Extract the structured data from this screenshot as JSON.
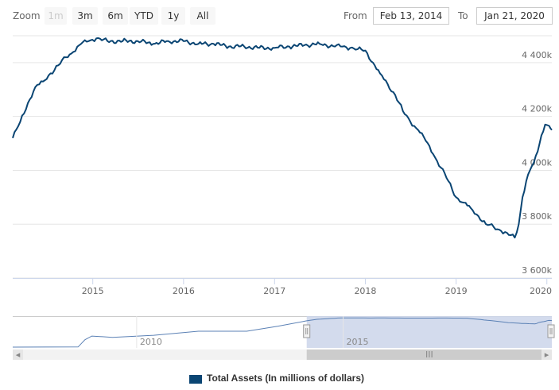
{
  "toolbar": {
    "zoom_label": "Zoom",
    "zoom_buttons": [
      "1m",
      "3m",
      "6m",
      "YTD",
      "1y",
      "All"
    ],
    "from_label": "From",
    "from_value": "Feb 13, 2014",
    "to_label": "To",
    "to_value": "Jan 21, 2020"
  },
  "colors": {
    "series": "#0a4573",
    "navigator_mask": "#cbd5ea",
    "navigator_line": "#5b81b5",
    "grid": "#e6e6e6"
  },
  "chart_data": {
    "type": "line",
    "ylim": [
      3600,
      4500
    ],
    "yticks": [
      3600,
      3800,
      4000,
      4200,
      4400
    ],
    "ytick_labels": [
      "3 600k",
      "3 800k",
      "4 000k",
      "4 200k",
      "4 400k"
    ],
    "xlim": [
      "2014-02-13",
      "2020-01-21"
    ],
    "xtick_labels": [
      "2015",
      "2016",
      "2017",
      "2018",
      "2019",
      "2020"
    ],
    "series": [
      {
        "name": "Total Assets (In millions of dollars)",
        "x": [
          "2014-02-13",
          "2014-03-15",
          "2014-04-15",
          "2014-05-15",
          "2014-06-15",
          "2014-07-15",
          "2014-08-15",
          "2014-09-15",
          "2014-10-15",
          "2014-11-15",
          "2014-12-15",
          "2015-01-15",
          "2015-03-01",
          "2015-05-01",
          "2015-07-01",
          "2015-09-01",
          "2015-11-01",
          "2016-01-01",
          "2016-03-01",
          "2016-05-01",
          "2016-07-01",
          "2016-09-01",
          "2016-11-01",
          "2017-01-01",
          "2017-03-01",
          "2017-05-01",
          "2017-07-01",
          "2017-09-01",
          "2017-10-01",
          "2017-11-01",
          "2017-12-01",
          "2018-01-01",
          "2018-02-01",
          "2018-03-01",
          "2018-04-01",
          "2018-05-01",
          "2018-06-01",
          "2018-07-01",
          "2018-08-01",
          "2018-09-01",
          "2018-10-01",
          "2018-11-01",
          "2018-12-01",
          "2019-01-01",
          "2019-02-01",
          "2019-03-01",
          "2019-04-01",
          "2019-05-01",
          "2019-06-01",
          "2019-07-01",
          "2019-08-01",
          "2019-08-25",
          "2019-09-10",
          "2019-09-25",
          "2019-10-10",
          "2019-10-25",
          "2019-11-10",
          "2019-11-25",
          "2019-12-10",
          "2019-12-25",
          "2020-01-10",
          "2020-01-21"
        ],
        "values": [
          4120,
          4180,
          4250,
          4310,
          4330,
          4360,
          4390,
          4420,
          4440,
          4470,
          4480,
          4490,
          4480,
          4480,
          4480,
          4470,
          4480,
          4480,
          4470,
          4470,
          4460,
          4460,
          4455,
          4455,
          4460,
          4465,
          4470,
          4460,
          4460,
          4455,
          4450,
          4445,
          4400,
          4360,
          4320,
          4280,
          4220,
          4180,
          4150,
          4110,
          4060,
          4010,
          3960,
          3900,
          3880,
          3860,
          3830,
          3800,
          3790,
          3775,
          3760,
          3750,
          3800,
          3900,
          3960,
          4000,
          4030,
          4070,
          4130,
          4170,
          4165,
          4150
        ]
      }
    ]
  },
  "navigator": {
    "xtick_labels": [
      "2010",
      "2015"
    ],
    "scroll_left_arrow": "◂",
    "scroll_right_arrow": "▸",
    "scroll_grip": "III"
  }
}
